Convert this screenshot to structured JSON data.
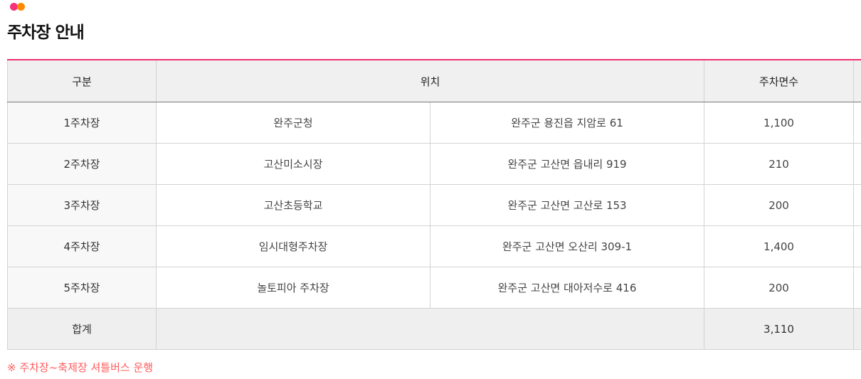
{
  "title": "주차장 안내",
  "colors": {
    "accent": "#f0306f",
    "dot_pink": "#f5327a",
    "dot_orange": "#ff8a00",
    "note": "#ff5c5c"
  },
  "table": {
    "headers": [
      "구분",
      "위치",
      "주차면수",
      ""
    ],
    "rows": [
      {
        "name": "1주차장",
        "place": "완주군청",
        "address": "완주군 용진읍 지암로 61",
        "spaces": "1,100"
      },
      {
        "name": "2주차장",
        "place": "고산미소시장",
        "address": "완주군 고산면 읍내리 919",
        "spaces": "210"
      },
      {
        "name": "3주차장",
        "place": "고산초등학교",
        "address": "완주군 고산면 고산로 153",
        "spaces": "200"
      },
      {
        "name": "4주차장",
        "place": "임시대형주차장",
        "address": "완주군 고산면 오산리 309-1",
        "spaces": "1,400"
      },
      {
        "name": "5주차장",
        "place": "놀토피아 주차장",
        "address": "완주군 고산면 대아저수로 416",
        "spaces": "200"
      }
    ],
    "total": {
      "label": "합계",
      "spaces": "3,110"
    }
  },
  "note": "※ 주차장~축제장 셔틀버스 운행"
}
